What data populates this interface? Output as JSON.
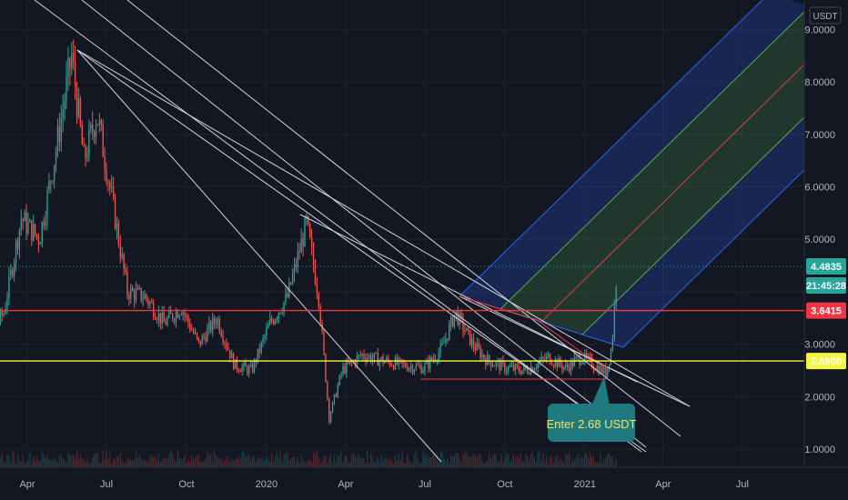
{
  "chart_data": {
    "type": "candlestick",
    "quote_unit": "USDT",
    "ylim": [
      0.7,
      9.3
    ],
    "y_ticks": [
      {
        "value": 9.0,
        "label": "9.0000"
      },
      {
        "value": 8.0,
        "label": "8.0000"
      },
      {
        "value": 7.0,
        "label": "7.0000"
      },
      {
        "value": 6.0,
        "label": "6.0000"
      },
      {
        "value": 5.0,
        "label": "5.0000"
      },
      {
        "value": 3.0,
        "label": "3.0000"
      },
      {
        "value": 2.0,
        "label": "2.0000"
      },
      {
        "value": 1.0,
        "label": "1.0000"
      }
    ],
    "x_ticks": [
      {
        "date": "2019-04-01",
        "label": "Apr"
      },
      {
        "date": "2019-07-01",
        "label": "Jul"
      },
      {
        "date": "2019-10-01",
        "label": "Oct"
      },
      {
        "date": "2020-01-01",
        "label": "2020"
      },
      {
        "date": "2020-04-01",
        "label": "Apr"
      },
      {
        "date": "2020-07-01",
        "label": "Jul"
      },
      {
        "date": "2020-10-01",
        "label": "Oct"
      },
      {
        "date": "2021-01-01",
        "label": "2021"
      },
      {
        "date": "2021-04-01",
        "label": "Apr"
      },
      {
        "date": "2021-07-01",
        "label": "Jul"
      }
    ],
    "price_path": [
      {
        "date": "2019-01-20",
        "value": 3.2
      },
      {
        "date": "2019-02-10",
        "value": 3.0
      },
      {
        "date": "2019-03-05",
        "value": 3.6
      },
      {
        "date": "2019-03-25",
        "value": 5.4
      },
      {
        "date": "2019-04-15",
        "value": 5.0
      },
      {
        "date": "2019-05-05",
        "value": 6.8
      },
      {
        "date": "2019-05-22",
        "value": 8.5
      },
      {
        "date": "2019-06-05",
        "value": 6.5
      },
      {
        "date": "2019-06-20",
        "value": 7.4
      },
      {
        "date": "2019-07-08",
        "value": 5.7
      },
      {
        "date": "2019-07-25",
        "value": 4.0
      },
      {
        "date": "2019-08-15",
        "value": 3.9
      },
      {
        "date": "2019-09-05",
        "value": 3.4
      },
      {
        "date": "2019-09-25",
        "value": 3.7
      },
      {
        "date": "2019-10-15",
        "value": 3.0
      },
      {
        "date": "2019-11-05",
        "value": 3.5
      },
      {
        "date": "2019-11-25",
        "value": 2.6
      },
      {
        "date": "2019-12-15",
        "value": 2.5
      },
      {
        "date": "2020-01-05",
        "value": 3.4
      },
      {
        "date": "2020-01-25",
        "value": 3.9
      },
      {
        "date": "2020-02-16",
        "value": 5.3
      },
      {
        "date": "2020-03-01",
        "value": 3.9
      },
      {
        "date": "2020-03-13",
        "value": 1.6
      },
      {
        "date": "2020-03-28",
        "value": 2.5
      },
      {
        "date": "2020-04-20",
        "value": 2.8
      },
      {
        "date": "2020-05-10",
        "value": 2.7
      },
      {
        "date": "2020-06-05",
        "value": 2.6
      },
      {
        "date": "2020-06-30",
        "value": 2.55
      },
      {
        "date": "2020-07-20",
        "value": 2.9
      },
      {
        "date": "2020-08-05",
        "value": 3.6
      },
      {
        "date": "2020-08-25",
        "value": 3.0
      },
      {
        "date": "2020-09-10",
        "value": 2.7
      },
      {
        "date": "2020-10-01",
        "value": 2.55
      },
      {
        "date": "2020-10-25",
        "value": 2.5
      },
      {
        "date": "2020-11-20",
        "value": 2.75
      },
      {
        "date": "2020-12-10",
        "value": 2.55
      },
      {
        "date": "2020-12-28",
        "value": 2.75
      },
      {
        "date": "2021-01-12",
        "value": 2.6
      },
      {
        "date": "2021-01-25",
        "value": 2.45
      },
      {
        "date": "2021-02-01",
        "value": 2.95
      },
      {
        "date": "2021-02-07",
        "value": 4.48
      }
    ],
    "horizontal_levels": [
      {
        "name": "resistance",
        "value": 3.6415,
        "label": "3.6415",
        "color": "#f23645"
      },
      {
        "name": "entry",
        "value": 2.68,
        "label": "2.6800",
        "color": "#f5f542"
      }
    ],
    "last_price": {
      "value": 4.4835,
      "label": "4.4835",
      "countdown": "21:45:28",
      "color": "#26a69a"
    },
    "annotation": {
      "text": "Enter 2.68 USDT",
      "bg_color": "#1f7a80",
      "text_color": "#f5e663"
    },
    "colors": {
      "bull": "#26a69a",
      "bear": "#ef5350",
      "trendline": "#d1d4dc",
      "channel_blue": "#2962ff",
      "channel_green": "#4caf50",
      "pitchfork_median": "#f23645"
    },
    "grid": true
  }
}
